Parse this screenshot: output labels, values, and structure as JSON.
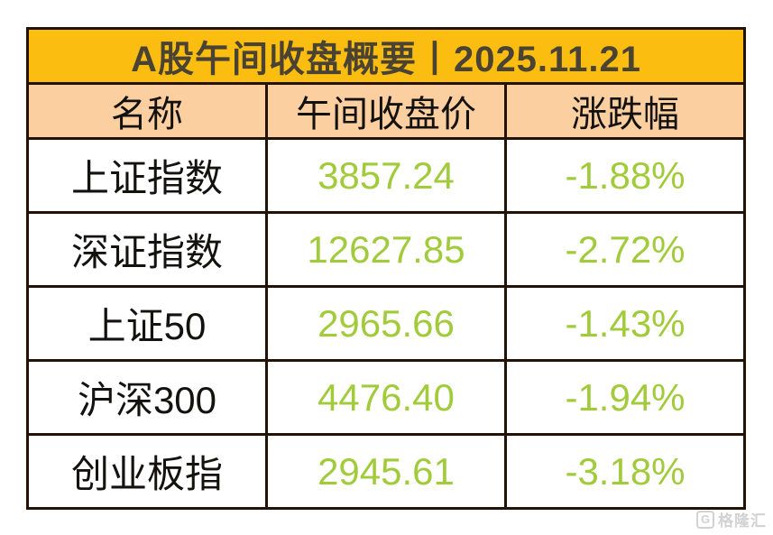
{
  "chart_data": {
    "type": "table",
    "title": "A股午间收盘概要丨2025.11.21",
    "columns": [
      "名称",
      "午间收盘价",
      "涨跌幅"
    ],
    "rows": [
      {
        "name": "上证指数",
        "price": "3857.24",
        "change": "-1.88%"
      },
      {
        "name": "深证指数",
        "price": "12627.85",
        "change": "-2.72%"
      },
      {
        "name": "上证50",
        "price": "2965.66",
        "change": "-1.43%"
      },
      {
        "name": "沪深300",
        "price": "4476.40",
        "change": "-1.94%"
      },
      {
        "name": "创业板指",
        "price": "2945.61",
        "change": "-3.18%"
      }
    ],
    "layout_hints": {
      "title_row_spans_all_columns": true,
      "all_cells_centered": true,
      "grid_on": true
    }
  },
  "watermark": {
    "logo": "G",
    "text": "格隆汇"
  },
  "colors": {
    "title_bg": "#fbbe10",
    "header_bg": "#fccfa1",
    "down_green": "#a2cb3c",
    "border": "#231307",
    "title_text": "#4a4233",
    "text": "#141210",
    "watermark_gray": "#d2d2d2"
  }
}
